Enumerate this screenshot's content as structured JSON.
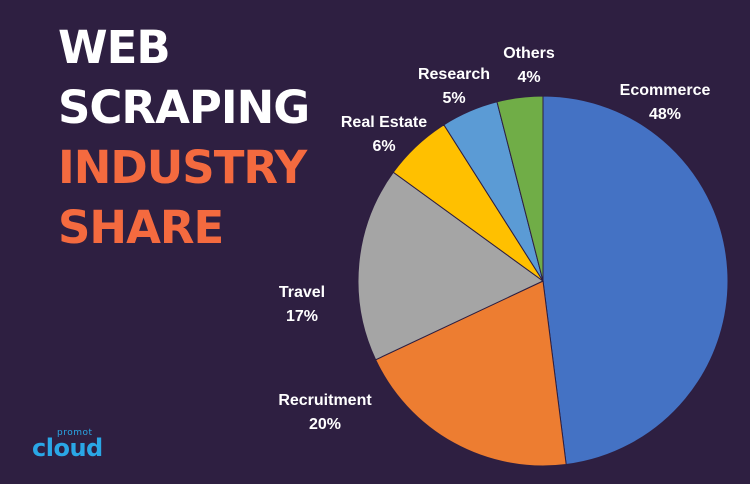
{
  "title": {
    "line1": "WEB",
    "line2": "SCRAPING",
    "line3": "INDUSTRY",
    "line4": "SHARE"
  },
  "logo": {
    "small_text": "promot",
    "big_text": "cloud",
    "color": "#2aa7e6"
  },
  "chart_data": {
    "type": "pie",
    "title": "WEB SCRAPING INDUSTRY SHARE",
    "start_angle_deg": 0,
    "direction": "clockwise",
    "slices": [
      {
        "label": "Ecommerce",
        "value": 48,
        "value_label": "48%",
        "color": "#4472c4"
      },
      {
        "label": "Recruitment",
        "value": 20,
        "value_label": "20%",
        "color": "#ed7d31"
      },
      {
        "label": "Travel",
        "value": 17,
        "value_label": "17%",
        "color": "#a5a5a5"
      },
      {
        "label": "Real Estate",
        "value": 6,
        "value_label": "6%",
        "color": "#ffc000"
      },
      {
        "label": "Research",
        "value": 5,
        "value_label": "5%",
        "color": "#5b9bd5"
      },
      {
        "label": "Others",
        "value": 4,
        "value_label": "4%",
        "color": "#70ad47"
      }
    ]
  }
}
